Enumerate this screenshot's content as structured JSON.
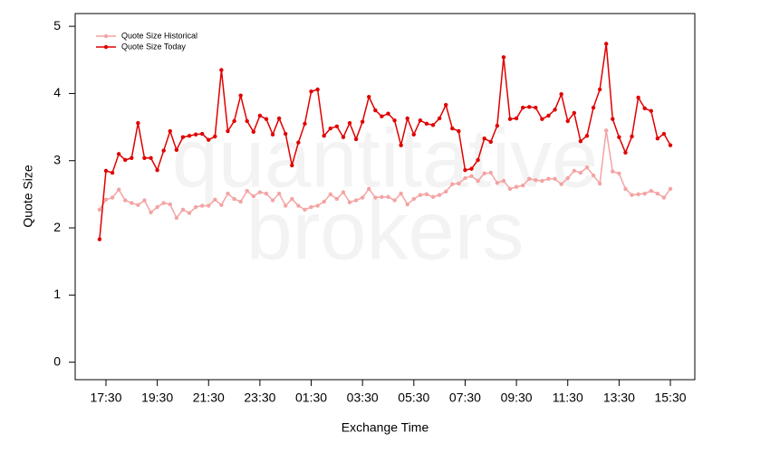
{
  "chart_data": {
    "type": "line",
    "ylabel": "Quote Size",
    "xlabel": "Exchange Time",
    "watermark": [
      "quantitative",
      "brokers"
    ],
    "categories": [
      null,
      "17:30",
      null,
      null,
      null,
      null,
      null,
      null,
      null,
      "19:30",
      null,
      null,
      null,
      null,
      null,
      null,
      null,
      "21:30",
      null,
      null,
      null,
      null,
      null,
      null,
      null,
      "23:30",
      null,
      null,
      null,
      null,
      null,
      null,
      null,
      "01:30",
      null,
      null,
      null,
      null,
      null,
      null,
      null,
      "03:30",
      null,
      null,
      null,
      null,
      null,
      null,
      null,
      "05:30",
      null,
      null,
      null,
      null,
      null,
      null,
      null,
      "07:30",
      null,
      null,
      null,
      null,
      null,
      null,
      null,
      "09:30",
      null,
      null,
      null,
      null,
      null,
      null,
      null,
      "11:30",
      null,
      null,
      null,
      null,
      null,
      null,
      null,
      "13:30",
      null,
      null,
      null,
      null,
      null,
      null,
      null,
      "15:30"
    ],
    "series": [
      {
        "name": "Quote Size Historical",
        "color": "#f4a3a3",
        "values": [
          2.27,
          2.42,
          2.45,
          2.57,
          2.41,
          2.37,
          2.34,
          2.41,
          2.23,
          2.31,
          2.37,
          2.35,
          2.15,
          2.27,
          2.22,
          2.31,
          2.33,
          2.33,
          2.42,
          2.34,
          2.51,
          2.43,
          2.39,
          2.55,
          2.47,
          2.53,
          2.51,
          2.41,
          2.51,
          2.33,
          2.43,
          2.33,
          2.27,
          2.31,
          2.33,
          2.39,
          2.5,
          2.43,
          2.53,
          2.38,
          2.41,
          2.45,
          2.58,
          2.45,
          2.46,
          2.46,
          2.41,
          2.51,
          2.35,
          2.43,
          2.49,
          2.5,
          2.46,
          2.49,
          2.54,
          2.65,
          2.66,
          2.74,
          2.77,
          2.7,
          2.81,
          2.82,
          2.67,
          2.7,
          2.58,
          2.61,
          2.63,
          2.73,
          2.71,
          2.7,
          2.73,
          2.73,
          2.65,
          2.74,
          2.85,
          2.82,
          2.9,
          2.78,
          2.66,
          3.45,
          2.84,
          2.81,
          2.58,
          2.49,
          2.5,
          2.51,
          2.55,
          2.51,
          2.45,
          2.58
        ]
      },
      {
        "name": "Quote Size Today",
        "color": "#e00000",
        "values": [
          1.83,
          2.85,
          2.82,
          3.1,
          3.01,
          3.04,
          3.56,
          3.04,
          3.04,
          2.86,
          3.15,
          3.44,
          3.16,
          3.35,
          3.37,
          3.39,
          3.4,
          3.31,
          3.36,
          4.35,
          3.44,
          3.59,
          3.97,
          3.59,
          3.43,
          3.67,
          3.62,
          3.39,
          3.63,
          3.4,
          2.93,
          3.27,
          3.55,
          4.03,
          4.06,
          3.37,
          3.48,
          3.51,
          3.35,
          3.56,
          3.32,
          3.58,
          3.95,
          3.75,
          3.66,
          3.7,
          3.6,
          3.23,
          3.63,
          3.39,
          3.6,
          3.55,
          3.53,
          3.63,
          3.83,
          3.48,
          3.44,
          2.86,
          2.88,
          3.01,
          3.33,
          3.28,
          3.52,
          4.54,
          3.62,
          3.63,
          3.79,
          3.8,
          3.79,
          3.62,
          3.67,
          3.76,
          3.99,
          3.59,
          3.71,
          3.29,
          3.37,
          3.79,
          4.06,
          4.74,
          3.62,
          3.35,
          3.12,
          3.36,
          3.94,
          3.78,
          3.74,
          3.33,
          3.4,
          3.23
        ]
      }
    ],
    "ylim": [
      -0.26,
      5.19
    ],
    "yticks": [
      0,
      1,
      2,
      3,
      4,
      5
    ],
    "legend": "top-left"
  }
}
